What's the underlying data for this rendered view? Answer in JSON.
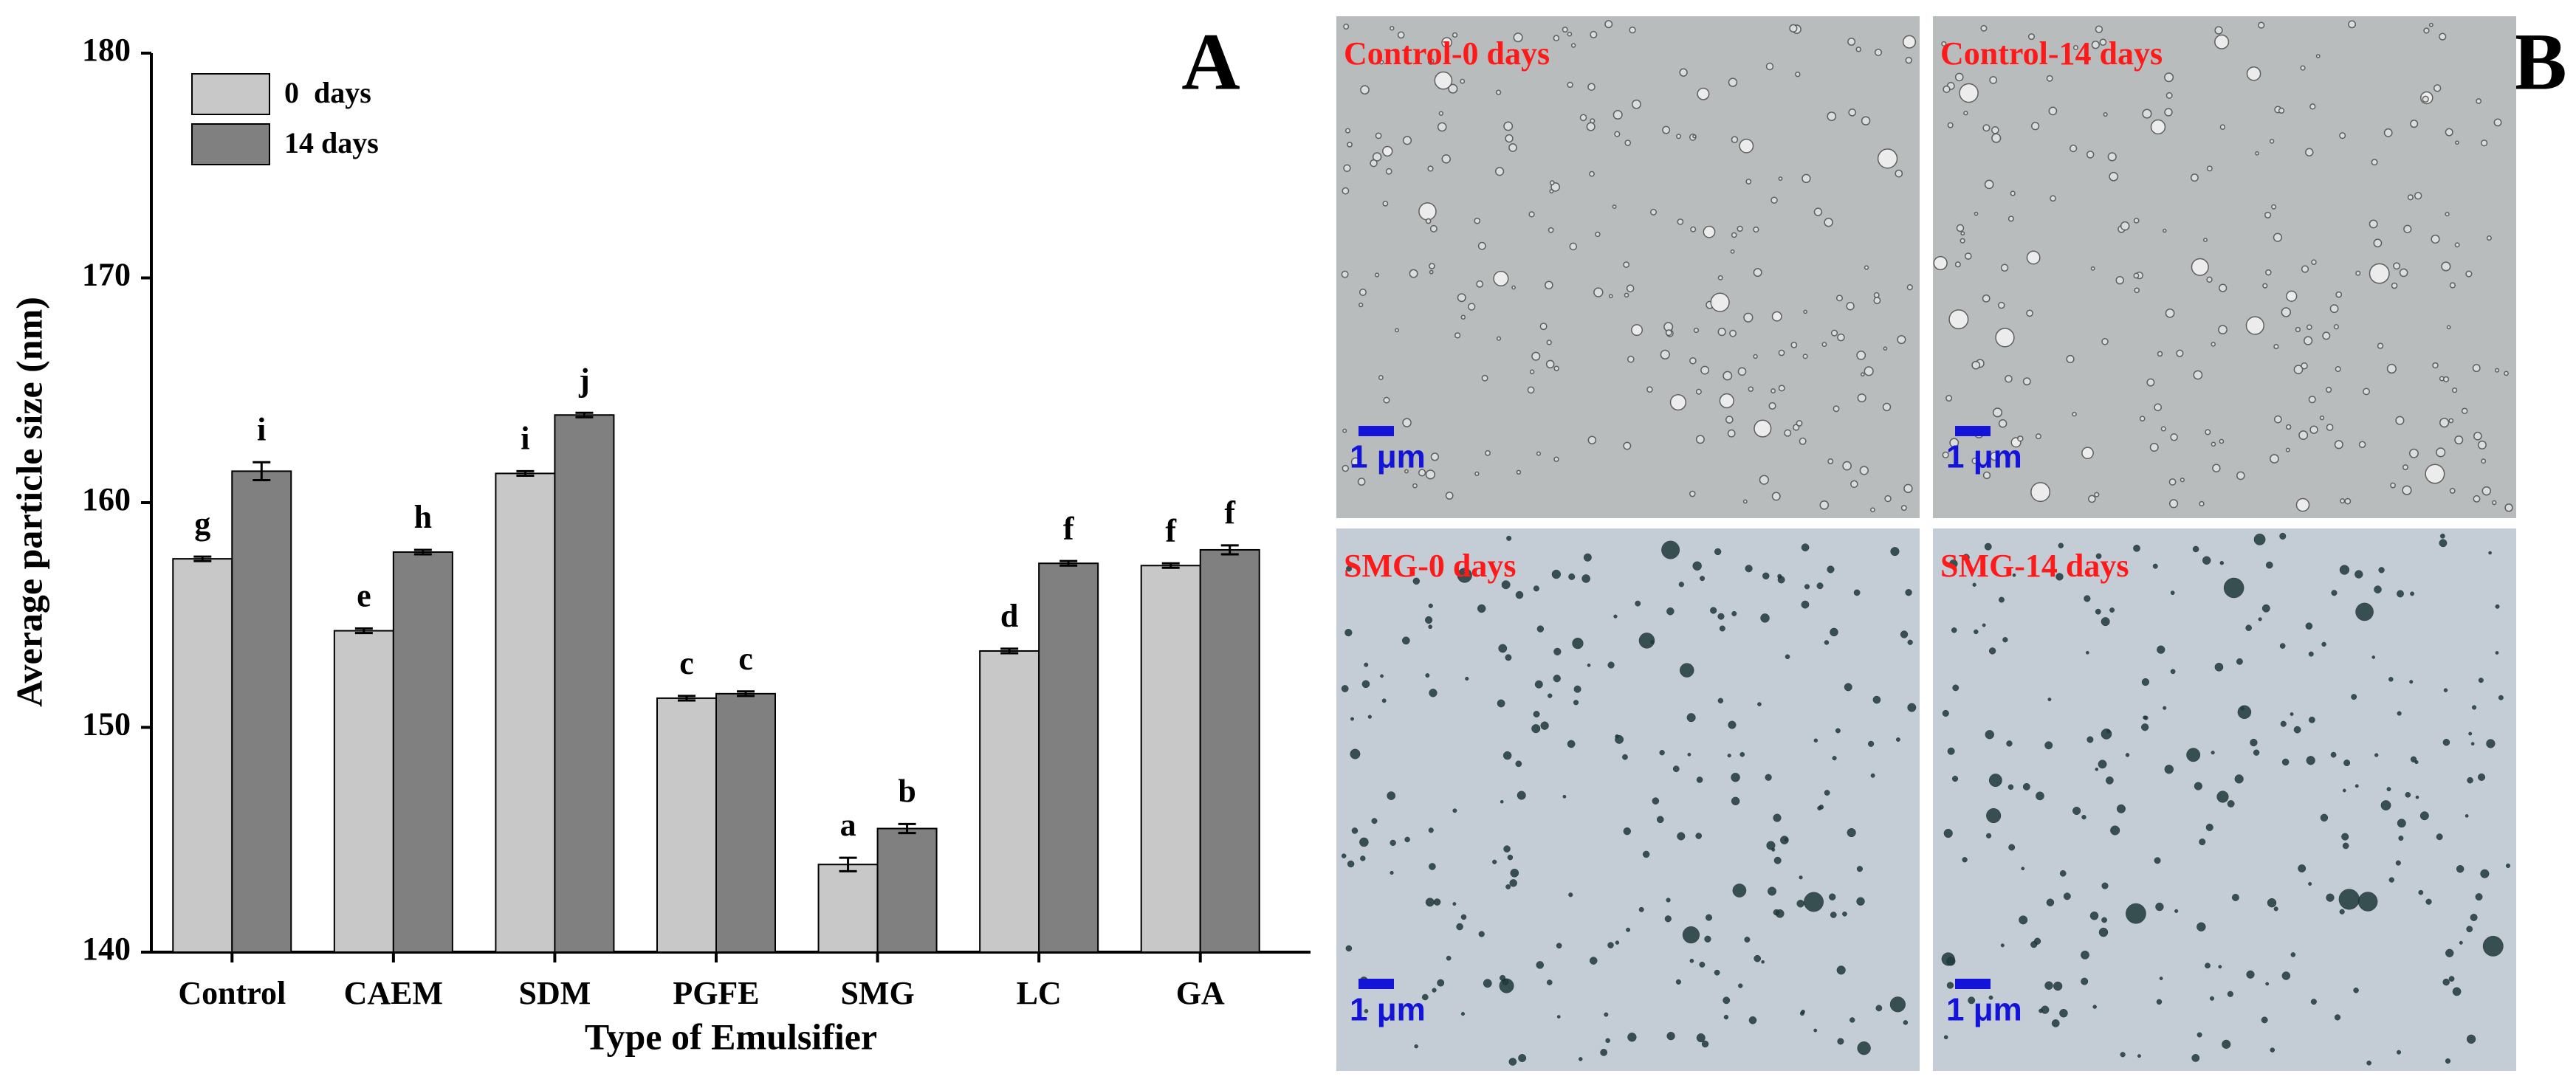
{
  "chart_data": {
    "type": "bar",
    "panel_label": "A",
    "xlabel": "Type of Emulsifier",
    "ylabel": "Average particle size (nm)",
    "categories": [
      "Control",
      "CAEM",
      "SDM",
      "PGFE",
      "SMG",
      "LC",
      "GA"
    ],
    "series": [
      {
        "name": "0  days",
        "color": "#c8c8c8",
        "values": [
          157.5,
          154.3,
          161.3,
          151.3,
          143.9,
          153.4,
          157.2
        ],
        "errors": [
          0.1,
          0.1,
          0.1,
          0.1,
          0.3,
          0.1,
          0.1
        ],
        "letters": [
          "g",
          "e",
          "i",
          "c",
          "a",
          "d",
          "f"
        ]
      },
      {
        "name": "14 days",
        "color": "#808080",
        "values": [
          161.4,
          157.8,
          163.9,
          151.5,
          145.5,
          157.3,
          157.9
        ],
        "errors": [
          0.4,
          0.1,
          0.1,
          0.1,
          0.2,
          0.1,
          0.2
        ],
        "letters": [
          "i",
          "h",
          "j",
          "c",
          "b",
          "f",
          "f"
        ]
      }
    ],
    "ylim": [
      140,
      180
    ],
    "yticks": [
      140,
      150,
      160,
      170,
      180
    ],
    "legend": "upper left"
  },
  "micrographs": {
    "panel_label": "B",
    "images": [
      {
        "caption": "Control-0 days",
        "scale_bar": "1 μm"
      },
      {
        "caption": "Control-14 days",
        "scale_bar": "1 μm"
      },
      {
        "caption": "SMG-0 days",
        "scale_bar": "1 μm"
      },
      {
        "caption": "SMG-14 days",
        "scale_bar": "1 μm"
      }
    ]
  }
}
